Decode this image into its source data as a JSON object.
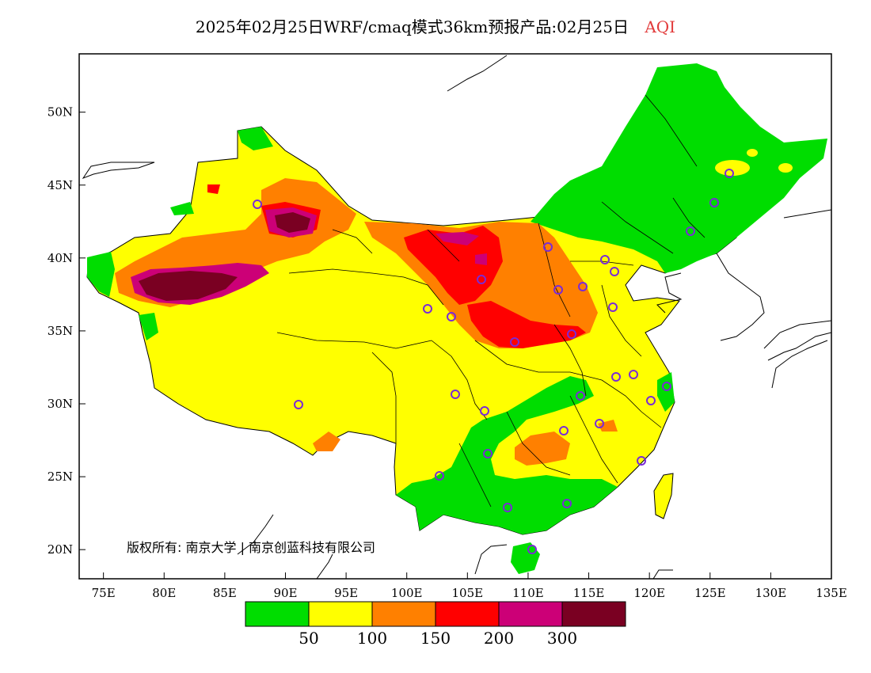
{
  "title": {
    "main": "2025年02月25日WRF/cmaq模式36km预报产品:02月25日",
    "variable": "AQI"
  },
  "map": {
    "lon_range": [
      73,
      135
    ],
    "lat_range": [
      18,
      54
    ],
    "lon_ticks": [
      "75E",
      "80E",
      "85E",
      "90E",
      "95E",
      "100E",
      "105E",
      "110E",
      "115E",
      "120E",
      "125E",
      "130E",
      "135E"
    ],
    "lat_ticks": [
      "20N",
      "25N",
      "30N",
      "35N",
      "40N",
      "45N",
      "50N"
    ],
    "copyright": "版权所有: 南京大学 | 南京创蓝科技有限公司"
  },
  "colorbar": {
    "colors": [
      "#00dd00",
      "#ffff00",
      "#ff8000",
      "#ff0000",
      "#cc0077",
      "#7a0022"
    ],
    "labels": [
      "50",
      "100",
      "150",
      "200",
      "300"
    ]
  },
  "city_marker_color": "#7a2bd6"
}
